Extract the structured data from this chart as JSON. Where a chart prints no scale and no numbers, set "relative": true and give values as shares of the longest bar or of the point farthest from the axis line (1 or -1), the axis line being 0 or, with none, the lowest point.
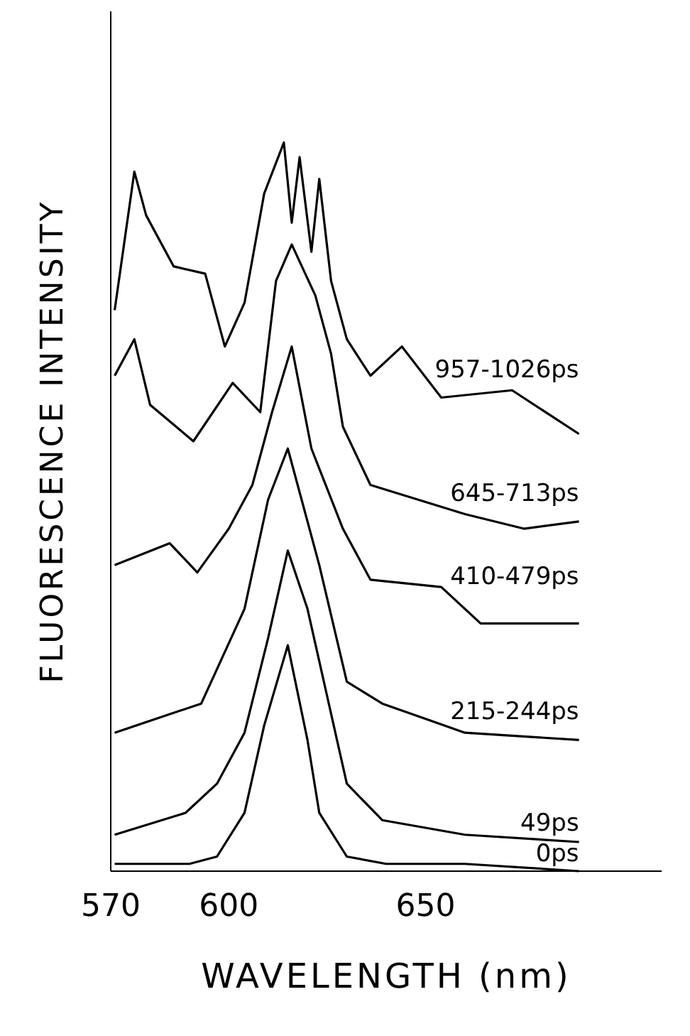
{
  "chart_data": {
    "type": "line",
    "relative": true,
    "xlabel": "WAVELENGTH (nm)",
    "ylabel": "FLUORESCENCE INTENSITY",
    "xlim": [
      570,
      710
    ],
    "xticks": [
      570,
      600,
      650
    ],
    "series": [
      {
        "name": "957-1026ps",
        "color": "#000000",
        "x": [
          571,
          576,
          579,
          586,
          594,
          599,
          604,
          609,
          614,
          616,
          618,
          621,
          623,
          626,
          630,
          636,
          644,
          654,
          672,
          689
        ],
        "values": [
          0.77,
          0.96,
          0.9,
          0.83,
          0.82,
          0.72,
          0.78,
          0.93,
          1.0,
          0.89,
          0.98,
          0.85,
          0.95,
          0.81,
          0.73,
          0.68,
          0.72,
          0.65,
          0.66,
          0.6
        ]
      },
      {
        "name": "645-713ps",
        "color": "#000000",
        "x": [
          571,
          576,
          580,
          591,
          601,
          608,
          612,
          616,
          622,
          626,
          629,
          636,
          648,
          660,
          675,
          689
        ],
        "values": [
          0.68,
          0.73,
          0.64,
          0.59,
          0.67,
          0.63,
          0.81,
          0.86,
          0.79,
          0.71,
          0.61,
          0.53,
          0.51,
          0.49,
          0.47,
          0.48
        ]
      },
      {
        "name": "410-479ps",
        "color": "#000000",
        "x": [
          571,
          585,
          592,
          600,
          606,
          611,
          616,
          621,
          629,
          636,
          654,
          664,
          689
        ],
        "values": [
          0.42,
          0.45,
          0.41,
          0.47,
          0.53,
          0.63,
          0.72,
          0.58,
          0.47,
          0.4,
          0.39,
          0.34,
          0.34
        ]
      },
      {
        "name": "215-244ps",
        "color": "#000000",
        "x": [
          571,
          593,
          604,
          610,
          615,
          623,
          630,
          639,
          660,
          689
        ],
        "values": [
          0.19,
          0.23,
          0.36,
          0.51,
          0.58,
          0.42,
          0.26,
          0.23,
          0.19,
          0.18
        ]
      },
      {
        "name": "49ps",
        "color": "#000000",
        "x": [
          571,
          589,
          597,
          604,
          610,
          615,
          620,
          630,
          639,
          660,
          689
        ],
        "values": [
          0.05,
          0.08,
          0.12,
          0.19,
          0.32,
          0.44,
          0.36,
          0.12,
          0.07,
          0.05,
          0.04
        ]
      },
      {
        "name": "0ps",
        "color": "#000000",
        "x": [
          571,
          590,
          597,
          604,
          609,
          615,
          620,
          623,
          630,
          640,
          660,
          689
        ],
        "values": [
          0.01,
          0.01,
          0.02,
          0.08,
          0.2,
          0.31,
          0.18,
          0.08,
          0.02,
          0.01,
          0.01,
          0.0
        ]
      }
    ]
  }
}
